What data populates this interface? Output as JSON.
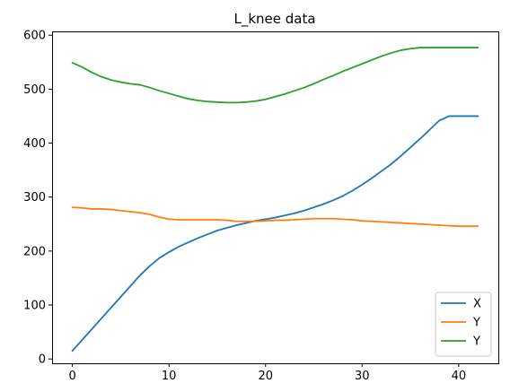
{
  "chart_data": {
    "type": "line",
    "title": "L_knee data",
    "xlabel": "",
    "ylabel": "",
    "xlim": [
      -2.1,
      44.1
    ],
    "ylim": [
      -8,
      607
    ],
    "xticks": [
      0,
      10,
      20,
      30,
      40
    ],
    "yticks": [
      0,
      100,
      200,
      300,
      400,
      500,
      600
    ],
    "grid": false,
    "legend_position": "lower-right",
    "x": [
      0,
      1,
      2,
      3,
      4,
      5,
      6,
      7,
      8,
      9,
      10,
      11,
      12,
      13,
      14,
      15,
      16,
      17,
      18,
      19,
      20,
      21,
      22,
      23,
      24,
      25,
      26,
      27,
      28,
      29,
      30,
      31,
      32,
      33,
      34,
      35,
      36,
      37,
      38,
      39,
      40,
      41,
      42
    ],
    "series": [
      {
        "name": "X",
        "color": "#1f77b4",
        "values": [
          15,
          35,
          55,
          75,
          95,
          115,
          135,
          155,
          172,
          187,
          198,
          208,
          216,
          224,
          231,
          238,
          243,
          248,
          252,
          256,
          259,
          262,
          266,
          270,
          275,
          281,
          287,
          294,
          302,
          312,
          323,
          335,
          348,
          361,
          376,
          392,
          408,
          425,
          442,
          450,
          450,
          450,
          450
        ]
      },
      {
        "name": "Y",
        "color": "#ff7f0e",
        "values": [
          281,
          280,
          278,
          278,
          277,
          275,
          273,
          271,
          268,
          263,
          259,
          258,
          258,
          258,
          258,
          258,
          257,
          255,
          255,
          255,
          256,
          257,
          257,
          258,
          259,
          260,
          260,
          260,
          259,
          258,
          256,
          255,
          254,
          253,
          252,
          251,
          250,
          249,
          248,
          247,
          246,
          246,
          246
        ]
      },
      {
        "name": "Y",
        "color": "#2ca02c",
        "values": [
          549,
          541,
          531,
          523,
          517,
          513,
          510,
          508,
          503,
          497,
          492,
          487,
          482,
          479,
          477,
          476,
          475,
          475,
          476,
          478,
          481,
          486,
          491,
          497,
          503,
          510,
          518,
          525,
          533,
          540,
          547,
          554,
          561,
          567,
          572,
          575,
          577,
          577,
          577,
          577,
          577,
          577,
          577
        ]
      }
    ]
  }
}
